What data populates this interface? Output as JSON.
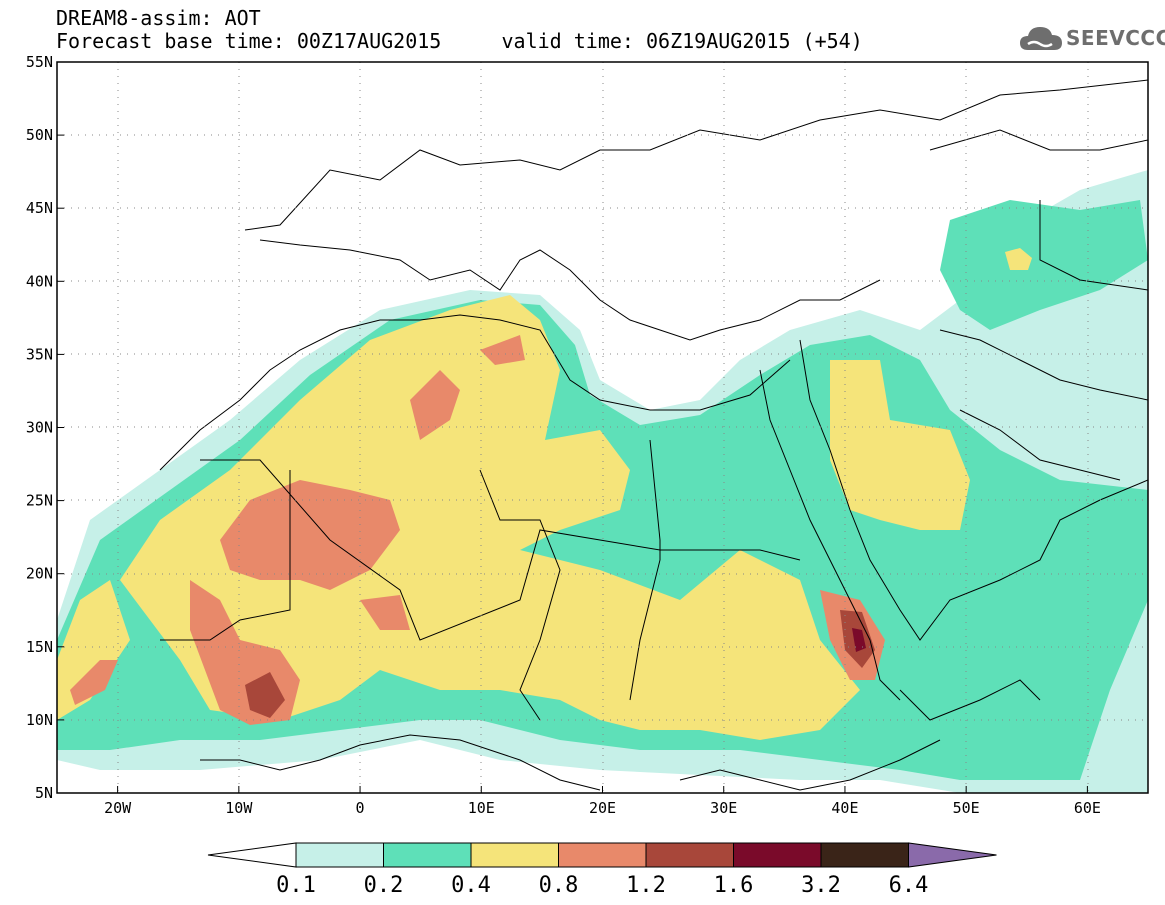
{
  "header": {
    "title": "DREAM8-assim: AOT",
    "subtitle": "Forecast base time: 00Z17AUG2015     valid time: 06Z19AUG2015 (+54)"
  },
  "logo": {
    "text": "SEEVCCC",
    "icon": "cloud-icon"
  },
  "map": {
    "lon_range": [
      -25,
      65
    ],
    "lat_range": [
      5,
      55
    ],
    "lon_ticks": [
      {
        "value": -20,
        "label": "20W"
      },
      {
        "value": -10,
        "label": "10W"
      },
      {
        "value": 0,
        "label": "0"
      },
      {
        "value": 10,
        "label": "10E"
      },
      {
        "value": 20,
        "label": "20E"
      },
      {
        "value": 30,
        "label": "30E"
      },
      {
        "value": 40,
        "label": "40E"
      },
      {
        "value": 50,
        "label": "50E"
      },
      {
        "value": 60,
        "label": "60E"
      }
    ],
    "lat_ticks": [
      {
        "value": 55,
        "label": "55N"
      },
      {
        "value": 50,
        "label": "50N"
      },
      {
        "value": 45,
        "label": "45N"
      },
      {
        "value": 40,
        "label": "40N"
      },
      {
        "value": 35,
        "label": "35N"
      },
      {
        "value": 30,
        "label": "30N"
      },
      {
        "value": 25,
        "label": "25N"
      },
      {
        "value": 20,
        "label": "20N"
      },
      {
        "value": 15,
        "label": "15N"
      },
      {
        "value": 10,
        "label": "10N"
      },
      {
        "value": 5,
        "label": "5N"
      }
    ],
    "grid": "dotted"
  },
  "colorbar": {
    "levels": [
      "0.1",
      "0.2",
      "0.4",
      "0.8",
      "1.2",
      "1.6",
      "3.2",
      "6.4"
    ],
    "colors": [
      "#ffffff",
      "#c6f0e8",
      "#5ee0b8",
      "#f5e47a",
      "#e8896a",
      "#a8473a",
      "#7a0a2a",
      "#3a2418",
      "#8a6aaa"
    ]
  }
}
